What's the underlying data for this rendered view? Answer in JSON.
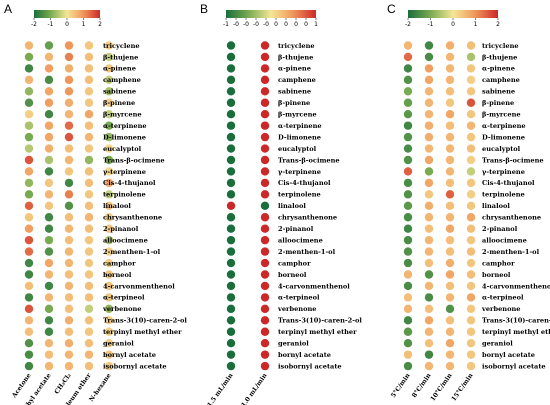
{
  "chart_data": [
    {
      "type": "heatmap",
      "panel_label": "A",
      "colorbar": {
        "min": -2,
        "max": 2,
        "ticks": [
          "-2",
          "-1",
          "0",
          "1",
          "2"
        ]
      },
      "rows": [
        "tricyclene",
        "β-thujene",
        "α-pinene",
        "camphene",
        "sabinene",
        "β-pinene",
        "β-myrcene",
        "α-terpinene",
        "D-limonene",
        "eucalyptol",
        "Trans-β-ocimene",
        "γ-terpinene",
        "Cis-4-thujanol",
        "terpinolene",
        "linalool",
        "chrysanthenone",
        "2-pinanol",
        "alloocimene",
        "2-menthen-1-ol",
        "camphor",
        "borneol",
        "4-carvonmenthenol",
        "α-terpineol",
        "verbenone",
        "Trans-3(10)-caren-2-ol",
        "terpinyl methyl ether",
        "geraniol",
        "bornyl acetate",
        "isobornyl acetate"
      ],
      "columns": [
        "Acetone",
        "Ethyl acetate",
        "CH₂Cl₂",
        "Petroleum ether",
        "N-hexane"
      ],
      "values": [
        [
          0.6,
          -1.2,
          1.0,
          0.4,
          0.3
        ],
        [
          -1.0,
          0.6,
          1.2,
          0.5,
          -0.4
        ],
        [
          -1.6,
          0.9,
          0.7,
          0.5,
          0.4
        ],
        [
          0.6,
          -1.5,
          1.0,
          0.5,
          -0.4
        ],
        [
          -0.8,
          0.8,
          1.0,
          0.4,
          -0.6
        ],
        [
          -1.4,
          0.9,
          0.7,
          0.4,
          0.3
        ],
        [
          0.3,
          -1.6,
          0.6,
          0.8,
          -0.4
        ],
        [
          -0.6,
          0.8,
          1.4,
          0.5,
          -1.0
        ],
        [
          -1.0,
          0.8,
          1.6,
          0.6,
          -0.8
        ],
        [
          -0.5,
          0.7,
          0.5,
          0.4,
          0.2
        ],
        [
          1.6,
          -0.6,
          0.6,
          -0.8,
          -1.0
        ],
        [
          0.8,
          -1.6,
          0.4,
          0.5,
          0.2
        ],
        [
          -0.8,
          0.4,
          -1.6,
          0.5,
          0.8
        ],
        [
          -1.0,
          0.6,
          1.2,
          0.4,
          -0.4
        ],
        [
          1.5,
          0.4,
          -1.4,
          0.5,
          0.4
        ],
        [
          0.4,
          -1.6,
          0.5,
          0.6,
          0.3
        ],
        [
          0.9,
          -1.6,
          0.6,
          0.5,
          0.4
        ],
        [
          1.6,
          -1.0,
          0.5,
          0.4,
          -0.6
        ],
        [
          1.4,
          -1.4,
          0.6,
          0.4,
          0.3
        ],
        [
          -1.6,
          0.8,
          0.6,
          0.4,
          0.3
        ],
        [
          -1.6,
          0.6,
          0.5,
          0.4,
          0.4
        ],
        [
          0.5,
          -1.6,
          0.6,
          0.5,
          0.4
        ],
        [
          -1.6,
          0.6,
          0.5,
          0.5,
          0.4
        ],
        [
          1.6,
          -1.0,
          0.5,
          -0.4,
          -0.8
        ],
        [
          0.6,
          -1.6,
          0.7,
          0.5,
          0.3
        ],
        [
          0.5,
          -1.6,
          0.5,
          0.4,
          0.3
        ],
        [
          -1.4,
          0.6,
          0.7,
          0.5,
          0.3
        ],
        [
          -1.5,
          0.5,
          0.6,
          0.6,
          0.4
        ],
        [
          -1.6,
          0.6,
          0.6,
          0.5,
          0.4
        ]
      ]
    },
    {
      "type": "heatmap",
      "panel_label": "B",
      "colorbar": {
        "min": -1,
        "max": 1,
        "ticks": [
          "-1",
          "-0",
          "-0",
          "-0",
          "-0",
          "0",
          "0",
          "0",
          "0",
          "1"
        ]
      },
      "rows": [
        "tricyclene",
        "β-thujene",
        "α-pinene",
        "camphene",
        "sabinene",
        "β-pinene",
        "β-myrcene",
        "α-terpinene",
        "D-limonene",
        "eucalyptol",
        "Trans-β-ocimene",
        "γ-terpinene",
        "Cis-4-thujanol",
        "terpinolene",
        "linalool",
        "chrysanthenone",
        "2-pinanol",
        "alloocimene",
        "2-menthen-1-ol",
        "camphor",
        "borneol",
        "4-carvonmenthenol",
        "α-terpineol",
        "verbenone",
        "Trans-3(10)-caren-2-ol",
        "terpinyl methyl ether",
        "geraniol",
        "bornyl acetate",
        "isobornyl acetate"
      ],
      "columns": [
        "1.5 mL/min",
        "1.0 mL/min"
      ],
      "values": [
        [
          -1,
          1
        ],
        [
          -1,
          1
        ],
        [
          -1,
          1
        ],
        [
          -1,
          1
        ],
        [
          -1,
          1
        ],
        [
          -1,
          1
        ],
        [
          -1,
          1
        ],
        [
          -1,
          1
        ],
        [
          -1,
          1
        ],
        [
          -1,
          1
        ],
        [
          -1,
          1
        ],
        [
          -1,
          1
        ],
        [
          -1,
          1
        ],
        [
          -1,
          1
        ],
        [
          1,
          -1
        ],
        [
          -1,
          1
        ],
        [
          -1,
          1
        ],
        [
          -1,
          1
        ],
        [
          -1,
          1
        ],
        [
          -1,
          1
        ],
        [
          -1,
          1
        ],
        [
          -1,
          1
        ],
        [
          -1,
          1
        ],
        [
          -1,
          1
        ],
        [
          -1,
          1
        ],
        [
          -1,
          1
        ],
        [
          -1,
          1
        ],
        [
          -1,
          1
        ],
        [
          -1,
          1
        ]
      ]
    },
    {
      "type": "heatmap",
      "panel_label": "C",
      "colorbar": {
        "min": -2,
        "max": 2,
        "ticks": [
          "-2",
          "-1",
          "0",
          "1",
          "2"
        ]
      },
      "rows": [
        "tricyclene",
        "β-thujene",
        "α-pinene",
        "camphene",
        "sabinene",
        "β-pinene",
        "β-myrcene",
        "α-terpinene",
        "D-limonene",
        "eucalyptol",
        "Trans-β-ocimene",
        "γ-terpinene",
        "Cis-4-thujanol",
        "terpinolene",
        "linalool",
        "chrysanthenone",
        "2-pinanol",
        "alloocimene",
        "2-menthen-1-ol",
        "camphor",
        "borneol",
        "4-carvonmenthenol",
        "α-terpineol",
        "verbenone",
        "Trans-3(10)-caren-2-ol",
        "terpinyl methyl ether",
        "geraniol",
        "bornyl acetate",
        "isobornyl acetate"
      ],
      "columns": [
        "5°C/min",
        "8°C/min",
        "10°C/min",
        "15°C/min"
      ],
      "values": [
        [
          0.6,
          -1.6,
          0.7,
          0.5
        ],
        [
          1.4,
          -1.5,
          0.6,
          -0.6
        ],
        [
          -1.6,
          0.9,
          0.6,
          0.4
        ],
        [
          -1.4,
          0.8,
          0.6,
          0.3
        ],
        [
          -1.0,
          0.6,
          0.5,
          0.4
        ],
        [
          -1.2,
          0.6,
          0.4,
          1.6
        ],
        [
          -1.3,
          0.6,
          0.8,
          0.4
        ],
        [
          -1.6,
          0.7,
          0.5,
          0.6
        ],
        [
          -1.4,
          0.7,
          0.6,
          0.4
        ],
        [
          -1.5,
          0.6,
          0.6,
          0.5
        ],
        [
          -1.4,
          0.8,
          0.6,
          0.3
        ],
        [
          1.5,
          -1.0,
          0.6,
          -0.4
        ],
        [
          -1.5,
          0.8,
          0.5,
          0.4
        ],
        [
          -1.4,
          0.4,
          1.5,
          0.3
        ],
        [
          -1.3,
          0.7,
          0.5,
          0.4
        ],
        [
          -1.5,
          0.6,
          0.6,
          0.8
        ],
        [
          -1.6,
          0.5,
          0.8,
          0.5
        ],
        [
          -1.5,
          0.6,
          0.5,
          0.4
        ],
        [
          -1.4,
          0.6,
          0.5,
          0.5
        ],
        [
          -1.5,
          0.5,
          0.7,
          0.4
        ],
        [
          0.6,
          -1.4,
          0.8,
          0.5
        ],
        [
          -1.5,
          0.6,
          0.5,
          0.4
        ],
        [
          0.5,
          -1.5,
          0.6,
          0.8
        ],
        [
          0.6,
          0.5,
          -1.4,
          0.4
        ],
        [
          -1.6,
          0.8,
          0.5,
          0.4
        ],
        [
          -1.3,
          0.6,
          0.6,
          0.4
        ],
        [
          -1.4,
          0.5,
          0.8,
          0.4
        ],
        [
          0.5,
          -1.6,
          0.6,
          0.4
        ],
        [
          -1.5,
          0.6,
          0.6,
          0.4
        ]
      ]
    }
  ]
}
